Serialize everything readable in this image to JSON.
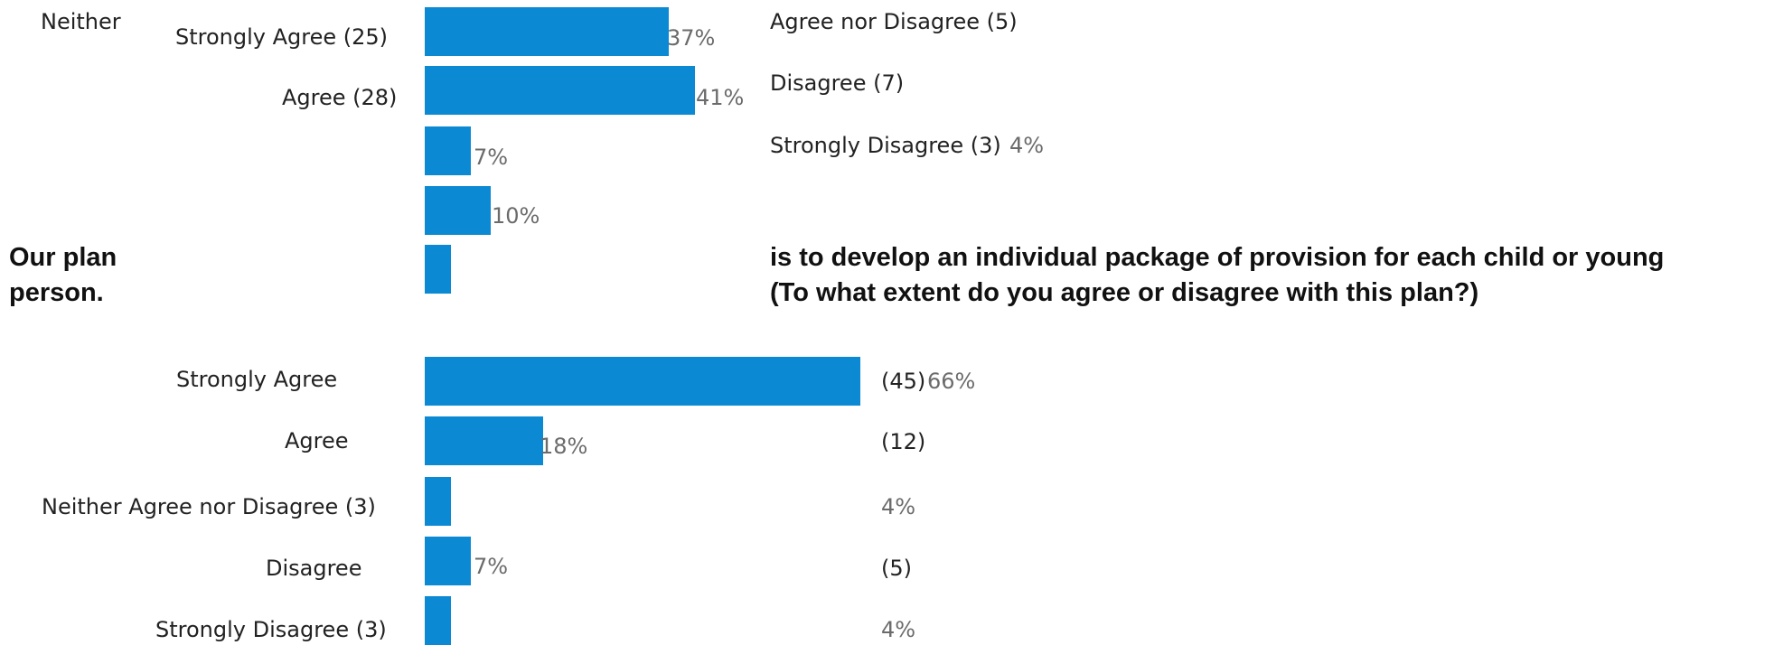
{
  "question": {
    "line1_left": "Our plan",
    "line2_left": "person.",
    "line1_right": "is to develop an individual package of provision for each child or young",
    "line2_right": "(To what extent do you agree or disagree with this plan?)"
  },
  "chart_data": [
    {
      "type": "bar",
      "orientation": "horizontal",
      "categories": [
        "Strongly Agree",
        "Agree",
        "Neither Agree nor Disagree",
        "Disagree",
        "Strongly Disagree"
      ],
      "counts": [
        25,
        28,
        5,
        7,
        3
      ],
      "values": [
        37,
        41,
        7,
        10,
        4
      ],
      "unit": "%",
      "labels": {
        "cat_strongly_agree": "Strongly Agree (25)",
        "cat_agree": "Agree (28)",
        "cat_neither_word": "Neither",
        "cat_neither_rest": "Agree nor Disagree (5)",
        "cat_disagree": "Disagree (7)",
        "cat_strongly_disagree": "Strongly Disagree (3)",
        "pct": [
          "37%",
          "41%",
          "7%",
          "10%",
          "4%"
        ]
      }
    },
    {
      "type": "bar",
      "orientation": "horizontal",
      "categories": [
        "Strongly Agree",
        "Agree",
        "Neither Agree nor Disagree",
        "Disagree",
        "Strongly Disagree"
      ],
      "counts": [
        45,
        12,
        3,
        5,
        3
      ],
      "values": [
        66,
        18,
        4,
        7,
        4
      ],
      "unit": "%",
      "labels": {
        "cat_strongly_agree": "Strongly Agree",
        "cat_agree": "Agree",
        "cat_neither": "Neither Agree nor Disagree (3)",
        "cat_disagree": "Disagree",
        "cat_strongly_disagree": "Strongly Disagree (3)",
        "count_strongly_agree": "(45)",
        "count_agree": "(12)",
        "count_disagree": "(5)",
        "pct": [
          "66%",
          "18%",
          "4%",
          "7%",
          "4%"
        ]
      }
    }
  ],
  "colors": {
    "bar": "#0b89d3",
    "percent_label": "#6b6b6b",
    "text": "#222222"
  }
}
